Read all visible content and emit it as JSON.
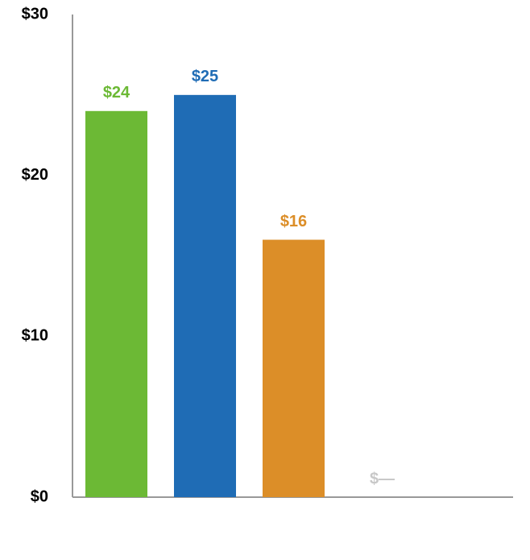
{
  "chart_data": {
    "type": "bar",
    "categories": [
      null,
      null,
      null,
      null
    ],
    "values": [
      24,
      25,
      16,
      0
    ],
    "value_labels": [
      "$24",
      "$25",
      "$16",
      "$—"
    ],
    "colors": [
      "#6cb935",
      "#1f6cb5",
      "#dc8e28",
      "#c8c8c8"
    ],
    "ylim": [
      0,
      30
    ],
    "yticks": [
      {
        "value": 0,
        "label": "$0"
      },
      {
        "value": 10,
        "label": "$10"
      },
      {
        "value": 20,
        "label": "$20"
      },
      {
        "value": 30,
        "label": "$30"
      }
    ],
    "grid": false
  }
}
